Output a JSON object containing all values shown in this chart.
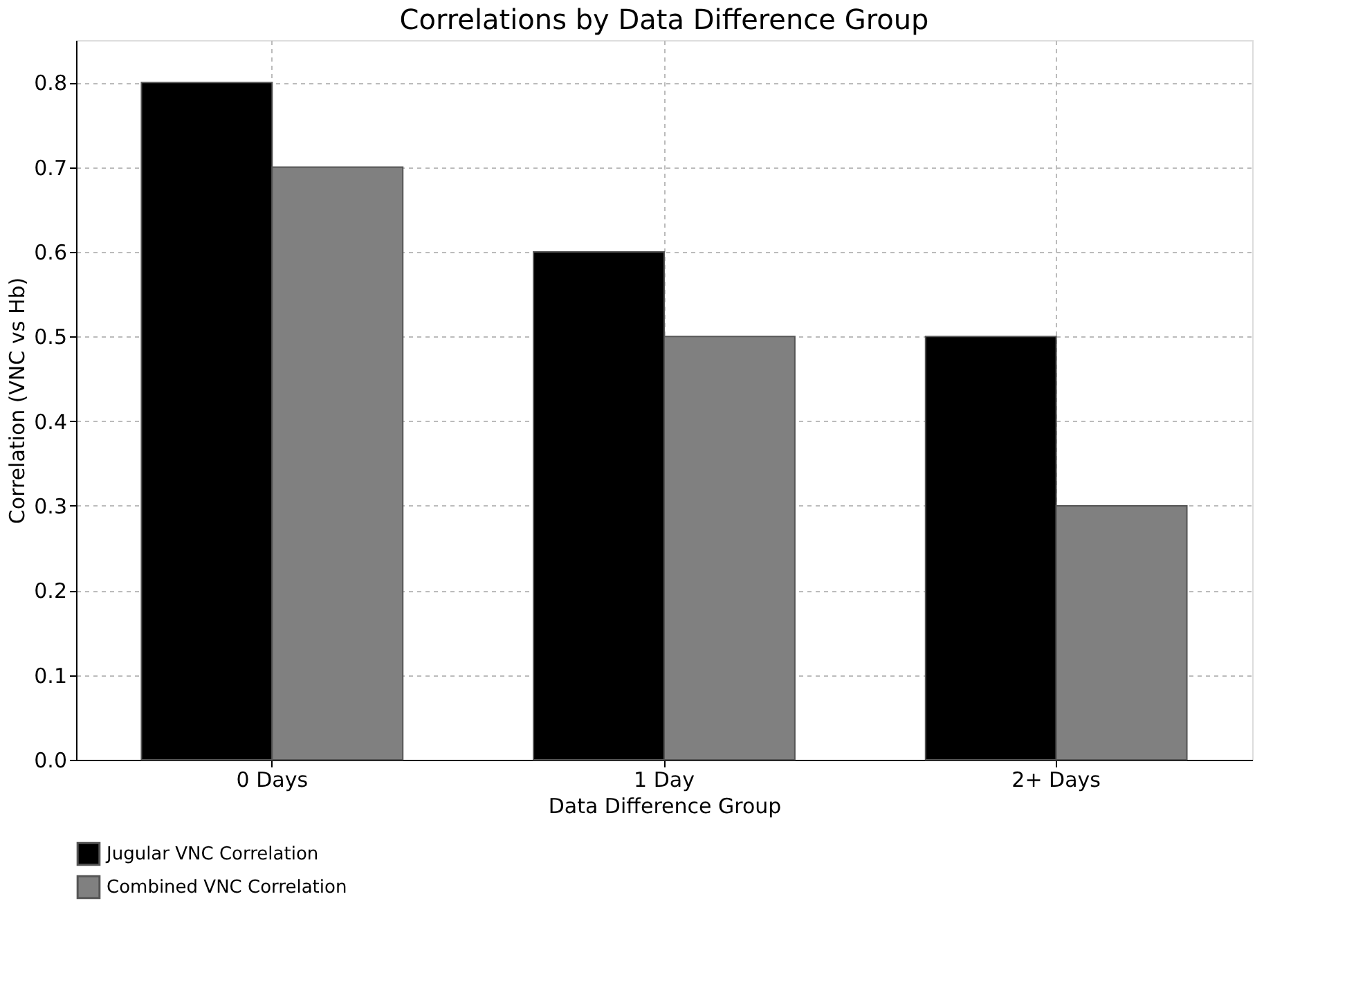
{
  "chart_data": {
    "type": "bar",
    "title": "Correlations by Data Difference Group",
    "xlabel": "Data Difference Group",
    "ylabel": "Correlation (VNC vs Hb)",
    "categories": [
      "0 Days",
      "1 Day",
      "2+ Days"
    ],
    "series": [
      {
        "name": "Jugular VNC Correlation",
        "color": "#000000",
        "values": [
          0.8,
          0.6,
          0.5
        ]
      },
      {
        "name": "Combined VNC Correlation",
        "color": "#808080",
        "values": [
          0.7,
          0.5,
          0.3
        ]
      }
    ],
    "ylim": [
      0,
      0.85
    ],
    "yticks": [
      {
        "value": 0,
        "label": "0.0"
      },
      0.1,
      0.2,
      0.3,
      0.4,
      0.5,
      0.6,
      0.7,
      0.8
    ],
    "grid": true,
    "legend": "bottom"
  }
}
